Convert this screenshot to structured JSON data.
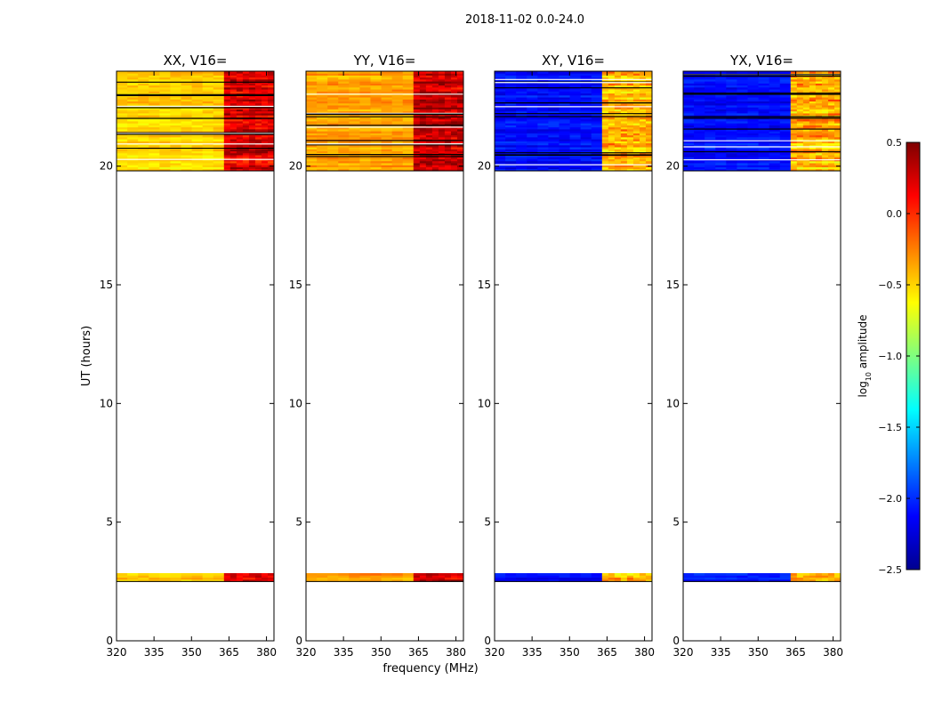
{
  "suptitle": "2018-11-02 0.0-24.0",
  "chart_data": {
    "type": "heatmap",
    "ylabel": "UT (hours)",
    "xlabel": "frequency (MHz)",
    "xlim": [
      320,
      383
    ],
    "ylim": [
      0,
      24
    ],
    "xticks": [
      320,
      335,
      350,
      365,
      380
    ],
    "yticks": [
      0,
      5,
      10,
      15,
      20
    ],
    "data_blocks_ut_hours": [
      [
        2.5,
        2.85
      ],
      [
        19.8,
        24.0
      ]
    ],
    "band_split_mhz": 363,
    "panels": [
      {
        "title": "XX, V16=",
        "low_band_log_amp": -0.5,
        "high_band_log_amp": 0.25
      },
      {
        "title": "YY, V16=",
        "low_band_log_amp": -0.35,
        "high_band_log_amp": 0.3
      },
      {
        "title": "XY, V16=",
        "low_band_log_amp": -2.1,
        "high_band_log_amp": -0.4
      },
      {
        "title": "YX, V16=",
        "low_band_log_amp": -2.1,
        "high_band_log_amp": -0.4
      }
    ],
    "colorbar": {
      "label_prefix": "log",
      "label_sub": "10",
      "label_suffix": " amplitude",
      "vmin": -2.5,
      "vmax": 0.5,
      "ticks": [
        "0.5",
        "0.0",
        "−0.5",
        "−1.0",
        "−1.5",
        "−2.0",
        "−2.5"
      ],
      "tick_values": [
        0.5,
        0.0,
        -0.5,
        -1.0,
        -1.5,
        -2.0,
        -2.5
      ]
    }
  }
}
